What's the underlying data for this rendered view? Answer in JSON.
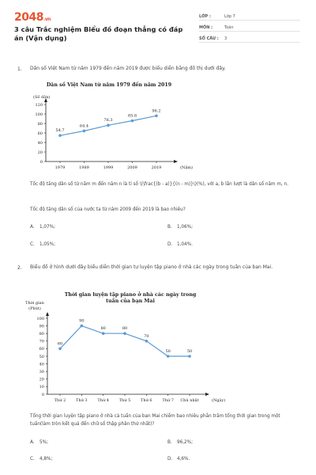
{
  "header": {
    "logo_main": "2048",
    "logo_suffix": ".vn",
    "title": "3 câu Trắc nghiệm Biểu đồ đoạn thẳng có đáp án (Vận dụng)",
    "meta": [
      {
        "key": "LỚP :",
        "value": "Lớp 7"
      },
      {
        "key": "MÔN :",
        "value": "Toán"
      },
      {
        "key": "SỐ CÂU :",
        "value": "3"
      }
    ]
  },
  "q1": {
    "number": "1.",
    "text": "Dân số Việt Nam từ năm 1979 đến năm 2019 được biểu diễn bằng đồ thị dưới đây.",
    "formula": "Tốc độ tăng dân số từ năm m đến năm n là tỉ số \\(\\frac{(b - a)}{(n - m)}\\)(%), với a, b lần lượt là dân số năm m, n.",
    "question": "Tốc độ tăng dân số của nước ta từ năm 2009 đến 2019 là bao nhiêu?",
    "options": [
      {
        "label": "A.",
        "text": "1,07%;"
      },
      {
        "label": "B.",
        "text": "1,06%;"
      },
      {
        "label": "C.",
        "text": "1,05%;"
      },
      {
        "label": "D.",
        "text": "1,04%."
      }
    ]
  },
  "q2": {
    "number": "2.",
    "text": "Biểu đồ ở hình dưới đây biểu diễn thời gian tự luyện tập piano ở nhà các ngày trong tuần của bạn Mai.",
    "question": "Tổng thời gian luyện tập piano ở nhà cả tuần của bạn Mai chiếm bao nhiêu phần trăm tổng thời gian trong một tuần(làm tròn kết quả đến chữ số thập phân thứ nhất)?",
    "options": [
      {
        "label": "A.",
        "text": "5%;"
      },
      {
        "label": "B.",
        "text": "96,2%;"
      },
      {
        "label": "C.",
        "text": "4,8%;"
      },
      {
        "label": "D.",
        "text": "4,6%."
      }
    ]
  },
  "chart_data": [
    {
      "type": "line",
      "title": "Dân số Việt Nam từ năm 1979 đến năm 2019",
      "ylabel": "(Số dân)",
      "xlabel": "(Năm)",
      "categories": [
        "1979",
        "1989",
        "1999",
        "2009",
        "2019"
      ],
      "series": [
        {
          "values": [
            54.7,
            64.4,
            76.3,
            85.8,
            96.2
          ]
        }
      ],
      "yticks": [
        0,
        20,
        40,
        60,
        80,
        100,
        120
      ],
      "ylim": [
        0,
        120
      ],
      "color": "#5b9bd5",
      "grid": false
    },
    {
      "type": "line",
      "title": "Thời gian luyện tập piano ở nhà các ngày trong tuần của bạn Mai",
      "ylabel": "Thời gian (Phút)",
      "xlabel": "(Ngày)",
      "categories": [
        "Thứ 2",
        "Thứ 3",
        "Thứ 4",
        "Thứ 5",
        "Thứ 6",
        "Thứ 7",
        "Chủ nhật"
      ],
      "series": [
        {
          "values": [
            60,
            90,
            80,
            80,
            70,
            50,
            50
          ]
        }
      ],
      "yticks": [
        0,
        10,
        20,
        30,
        40,
        50,
        60,
        70,
        80,
        90,
        100
      ],
      "ylim": [
        0,
        100
      ],
      "color": "#5b9bd5",
      "grid": false
    }
  ]
}
